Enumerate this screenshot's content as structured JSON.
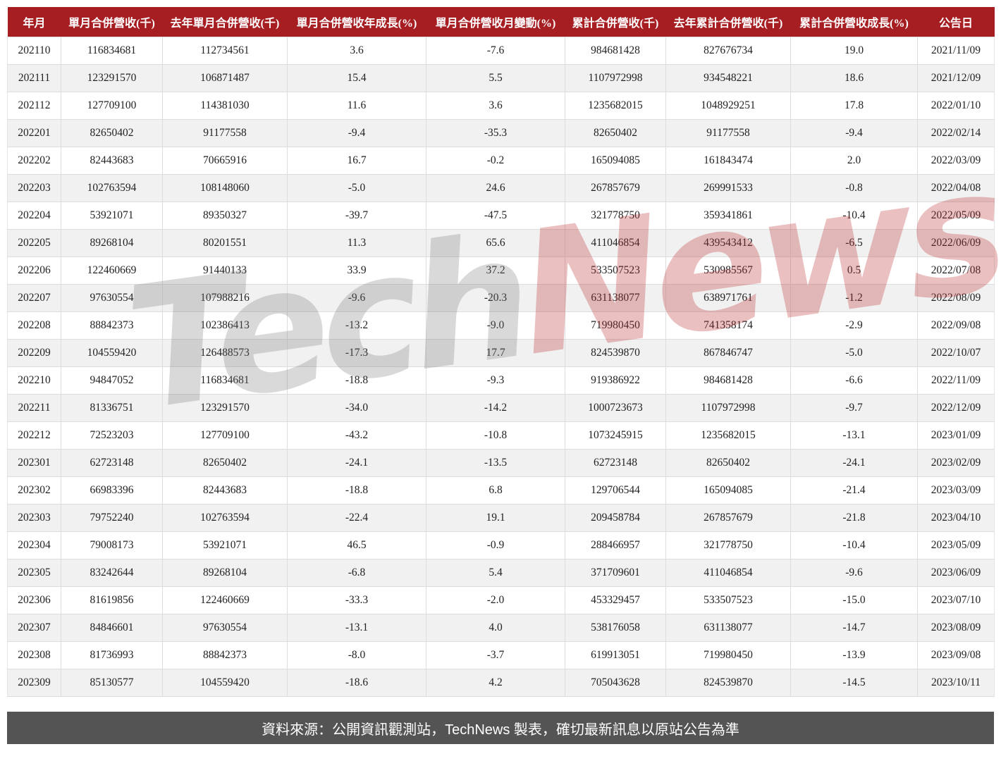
{
  "chart_data": {
    "type": "table",
    "title": "月營收統計表",
    "columns": [
      "年月",
      "單月合併營收(千)",
      "去年單月合併營收(千)",
      "單月合併營收年成長(%)",
      "單月合併營收月變動(%)",
      "累計合併營收(千)",
      "去年累計合併營收(千)",
      "累計合併營收成長(%)",
      "公告日"
    ],
    "column_keys": [
      "year-month",
      "monthly-revenue",
      "last-year-monthly-revenue",
      "yoy-growth",
      "mom-change",
      "cumulative-revenue",
      "last-year-cumulative-revenue",
      "cumulative-growth",
      "announce-date"
    ],
    "rows": [
      [
        "202110",
        "116834681",
        "112734561",
        "3.6",
        "-7.6",
        "984681428",
        "827676734",
        "19.0",
        "2021/11/09"
      ],
      [
        "202111",
        "123291570",
        "106871487",
        "15.4",
        "5.5",
        "1107972998",
        "934548221",
        "18.6",
        "2021/12/09"
      ],
      [
        "202112",
        "127709100",
        "114381030",
        "11.6",
        "3.6",
        "1235682015",
        "1048929251",
        "17.8",
        "2022/01/10"
      ],
      [
        "202201",
        "82650402",
        "91177558",
        "-9.4",
        "-35.3",
        "82650402",
        "91177558",
        "-9.4",
        "2022/02/14"
      ],
      [
        "202202",
        "82443683",
        "70665916",
        "16.7",
        "-0.2",
        "165094085",
        "161843474",
        "2.0",
        "2022/03/09"
      ],
      [
        "202203",
        "102763594",
        "108148060",
        "-5.0",
        "24.6",
        "267857679",
        "269991533",
        "-0.8",
        "2022/04/08"
      ],
      [
        "202204",
        "53921071",
        "89350327",
        "-39.7",
        "-47.5",
        "321778750",
        "359341861",
        "-10.4",
        "2022/05/09"
      ],
      [
        "202205",
        "89268104",
        "80201551",
        "11.3",
        "65.6",
        "411046854",
        "439543412",
        "-6.5",
        "2022/06/09"
      ],
      [
        "202206",
        "122460669",
        "91440133",
        "33.9",
        "37.2",
        "533507523",
        "530985567",
        "0.5",
        "2022/07/08"
      ],
      [
        "202207",
        "97630554",
        "107988216",
        "-9.6",
        "-20.3",
        "631138077",
        "638971761",
        "-1.2",
        "2022/08/09"
      ],
      [
        "202208",
        "88842373",
        "102386413",
        "-13.2",
        "-9.0",
        "719980450",
        "741358174",
        "-2.9",
        "2022/09/08"
      ],
      [
        "202209",
        "104559420",
        "126488573",
        "-17.3",
        "17.7",
        "824539870",
        "867846747",
        "-5.0",
        "2022/10/07"
      ],
      [
        "202210",
        "94847052",
        "116834681",
        "-18.8",
        "-9.3",
        "919386922",
        "984681428",
        "-6.6",
        "2022/11/09"
      ],
      [
        "202211",
        "81336751",
        "123291570",
        "-34.0",
        "-14.2",
        "1000723673",
        "1107972998",
        "-9.7",
        "2022/12/09"
      ],
      [
        "202212",
        "72523203",
        "127709100",
        "-43.2",
        "-10.8",
        "1073245915",
        "1235682015",
        "-13.1",
        "2023/01/09"
      ],
      [
        "202301",
        "62723148",
        "82650402",
        "-24.1",
        "-13.5",
        "62723148",
        "82650402",
        "-24.1",
        "2023/02/09"
      ],
      [
        "202302",
        "66983396",
        "82443683",
        "-18.8",
        "6.8",
        "129706544",
        "165094085",
        "-21.4",
        "2023/03/09"
      ],
      [
        "202303",
        "79752240",
        "102763594",
        "-22.4",
        "19.1",
        "209458784",
        "267857679",
        "-21.8",
        "2023/04/10"
      ],
      [
        "202304",
        "79008173",
        "53921071",
        "46.5",
        "-0.9",
        "288466957",
        "321778750",
        "-10.4",
        "2023/05/09"
      ],
      [
        "202305",
        "83242644",
        "89268104",
        "-6.8",
        "5.4",
        "371709601",
        "411046854",
        "-9.6",
        "2023/06/09"
      ],
      [
        "202306",
        "81619856",
        "122460669",
        "-33.3",
        "-2.0",
        "453329457",
        "533507523",
        "-15.0",
        "2023/07/10"
      ],
      [
        "202307",
        "84846601",
        "97630554",
        "-13.1",
        "4.0",
        "538176058",
        "631138077",
        "-14.7",
        "2023/08/09"
      ],
      [
        "202308",
        "81736993",
        "88842373",
        "-8.0",
        "-3.7",
        "619913051",
        "719980450",
        "-13.9",
        "2023/09/08"
      ],
      [
        "202309",
        "85130577",
        "104559420",
        "-18.6",
        "4.2",
        "705043628",
        "824539870",
        "-14.5",
        "2023/10/11"
      ]
    ],
    "layout_hints": {
      "striped_rows": true,
      "alt_row_color": "#f1f1f1",
      "header_color": "#a61d22"
    }
  },
  "watermark": {
    "part1": "Tech",
    "part2": "News"
  },
  "footer": {
    "text": "資料來源：公開資訊觀測站，TechNews 製表，確切最新訊息以原站公告為準"
  },
  "colors": {
    "header_bg": "#a61d22",
    "header_text": "#ffffff",
    "row_alt_bg": "#f1f1f1",
    "cell_border": "#dddddd",
    "footer_bg": "#545454",
    "footer_text": "#ffffff",
    "watermark_gray": "rgba(120,120,120,0.28)",
    "watermark_red": "rgba(190,45,50,0.30)"
  }
}
